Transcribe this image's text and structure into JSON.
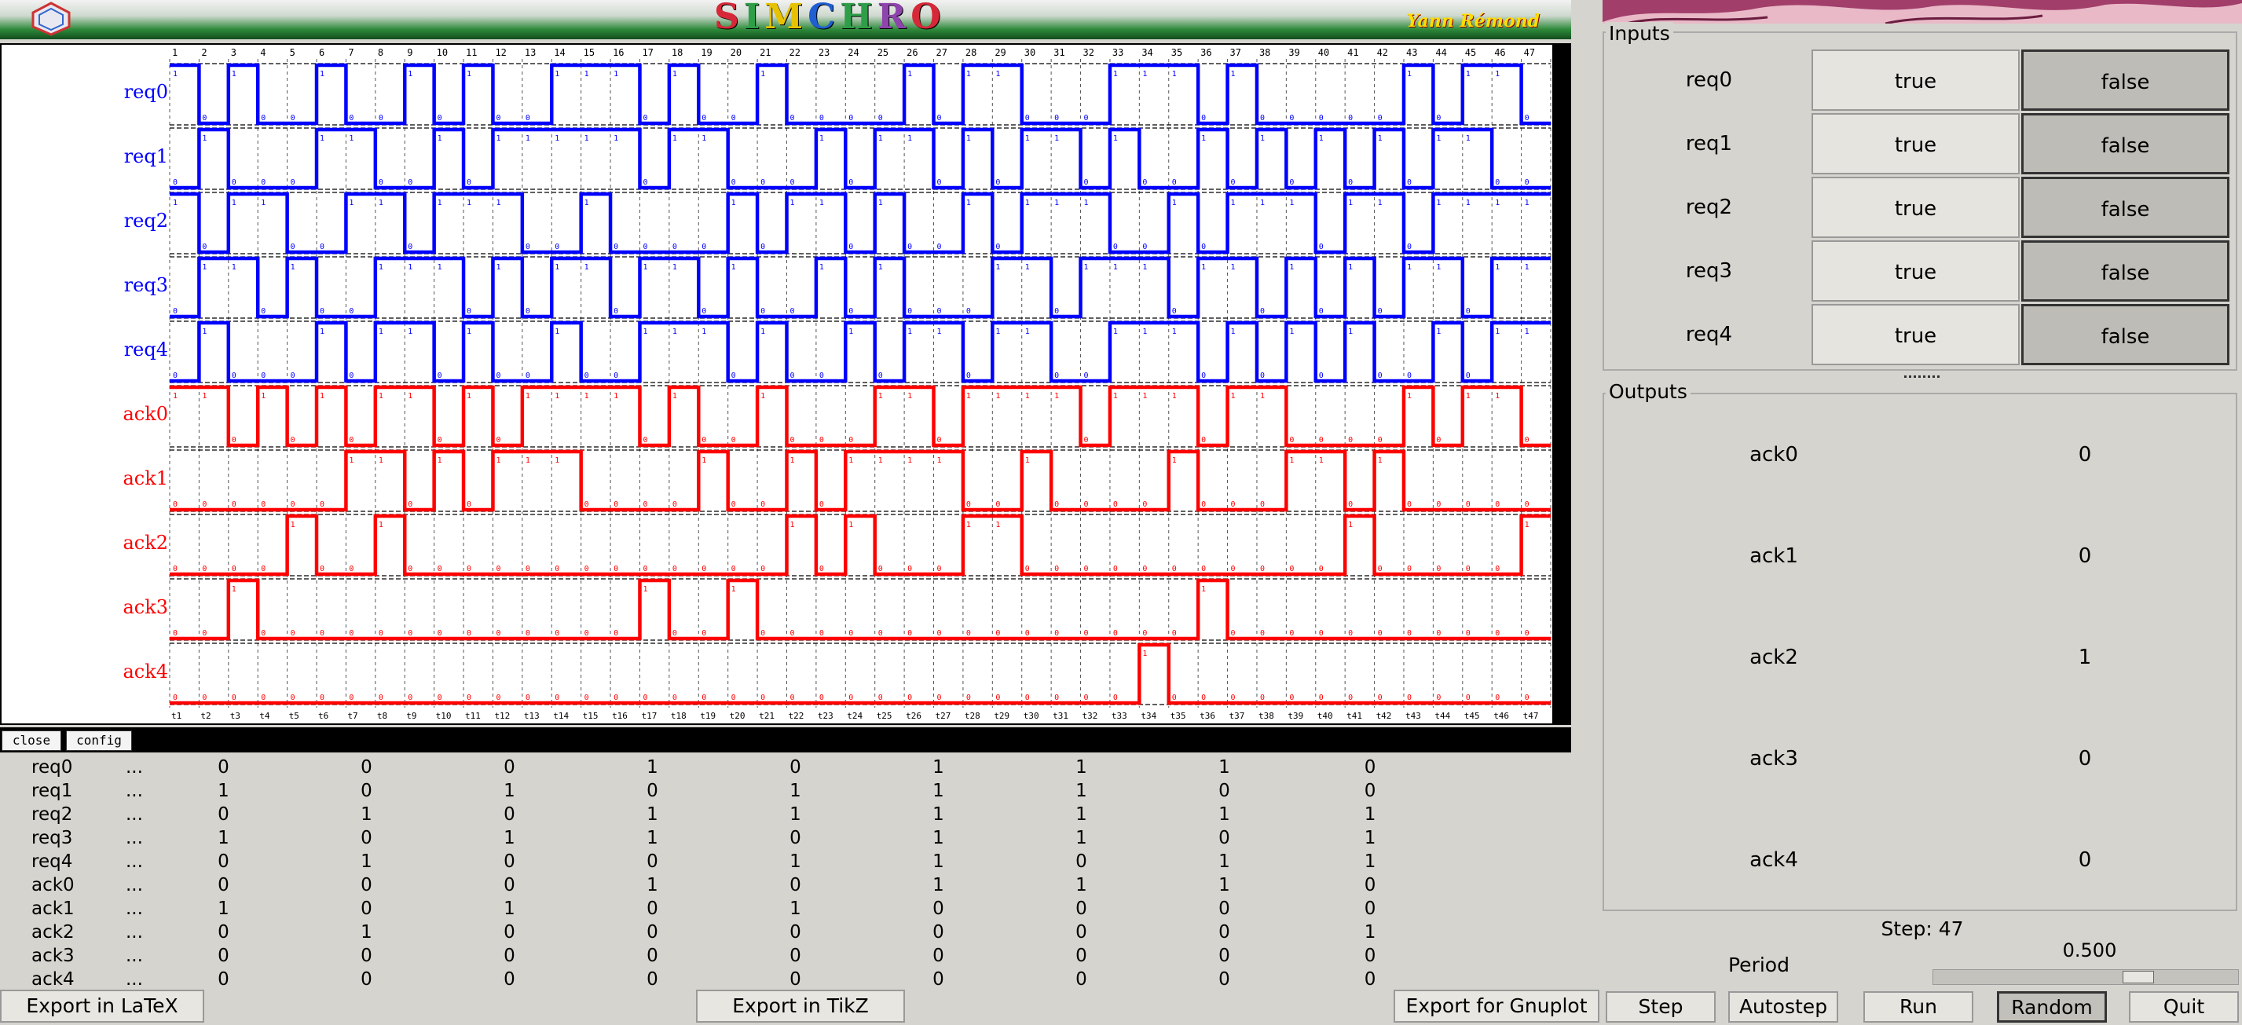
{
  "banner": {
    "title_letters": [
      {
        "ch": "S",
        "color": "#d62839"
      },
      {
        "ch": "I",
        "color": "#2e9e48"
      },
      {
        "ch": "M",
        "color": "#e6c200"
      },
      {
        "ch": "C",
        "color": "#1f5fd1"
      },
      {
        "ch": "H",
        "color": "#2e9e48"
      },
      {
        "ch": "R",
        "color": "#8e44ad"
      },
      {
        "ch": "O",
        "color": "#d62839"
      }
    ],
    "author": "Yann Rémond"
  },
  "waveform": {
    "steps": 47,
    "signals": [
      {
        "name": "req0",
        "color": "#0000ff",
        "values": [
          1,
          0,
          1,
          0,
          0,
          1,
          0,
          0,
          1,
          0,
          1,
          0,
          0,
          1,
          1,
          1,
          0,
          1,
          0,
          0,
          1,
          0,
          0,
          0,
          0,
          1,
          0,
          1,
          1,
          0,
          0,
          0,
          1,
          1,
          1,
          0,
          1,
          0,
          0,
          0,
          0,
          0,
          1,
          0,
          1,
          1,
          0
        ]
      },
      {
        "name": "req1",
        "color": "#0000ff",
        "values": [
          0,
          1,
          0,
          0,
          0,
          1,
          1,
          0,
          0,
          1,
          0,
          1,
          1,
          1,
          1,
          1,
          0,
          1,
          1,
          0,
          0,
          0,
          1,
          0,
          1,
          1,
          0,
          1,
          0,
          1,
          1,
          0,
          1,
          0,
          0,
          1,
          0,
          1,
          0,
          1,
          0,
          1,
          0,
          1,
          1,
          0,
          0
        ]
      },
      {
        "name": "req2",
        "color": "#0000ff",
        "values": [
          1,
          0,
          1,
          1,
          0,
          0,
          1,
          1,
          0,
          1,
          1,
          1,
          0,
          0,
          1,
          0,
          0,
          0,
          0,
          1,
          0,
          1,
          1,
          0,
          1,
          0,
          0,
          1,
          0,
          1,
          1,
          1,
          0,
          0,
          1,
          0,
          1,
          1,
          1,
          0,
          1,
          1,
          0,
          1,
          1,
          1,
          1
        ]
      },
      {
        "name": "req3",
        "color": "#0000ff",
        "values": [
          0,
          1,
          1,
          0,
          1,
          0,
          0,
          1,
          1,
          1,
          0,
          1,
          0,
          1,
          1,
          0,
          1,
          1,
          0,
          1,
          0,
          0,
          1,
          0,
          1,
          0,
          0,
          0,
          1,
          1,
          0,
          1,
          1,
          1,
          0,
          1,
          1,
          0,
          1,
          0,
          1,
          0,
          1,
          1,
          0,
          1,
          1
        ]
      },
      {
        "name": "req4",
        "color": "#0000ff",
        "values": [
          0,
          1,
          0,
          0,
          0,
          1,
          0,
          1,
          1,
          0,
          1,
          0,
          0,
          1,
          0,
          0,
          1,
          1,
          1,
          0,
          1,
          0,
          0,
          1,
          0,
          1,
          1,
          0,
          1,
          1,
          0,
          0,
          1,
          1,
          1,
          0,
          1,
          0,
          1,
          0,
          1,
          0,
          0,
          1,
          0,
          1,
          1
        ]
      },
      {
        "name": "ack0",
        "color": "#ff0000",
        "values": [
          1,
          1,
          0,
          1,
          0,
          1,
          0,
          1,
          1,
          0,
          1,
          0,
          1,
          1,
          1,
          1,
          0,
          1,
          0,
          0,
          1,
          0,
          0,
          0,
          1,
          1,
          0,
          1,
          1,
          1,
          1,
          0,
          1,
          1,
          1,
          0,
          1,
          1,
          0,
          0,
          0,
          0,
          1,
          0,
          1,
          1,
          0
        ]
      },
      {
        "name": "ack1",
        "color": "#ff0000",
        "values": [
          0,
          0,
          0,
          0,
          0,
          0,
          1,
          1,
          0,
          1,
          0,
          1,
          1,
          1,
          0,
          0,
          0,
          0,
          1,
          0,
          0,
          1,
          0,
          1,
          1,
          1,
          1,
          0,
          0,
          1,
          0,
          0,
          0,
          0,
          1,
          0,
          0,
          0,
          1,
          1,
          0,
          1,
          0,
          0,
          0,
          0,
          0
        ]
      },
      {
        "name": "ack2",
        "color": "#ff0000",
        "values": [
          0,
          0,
          0,
          0,
          1,
          0,
          0,
          1,
          0,
          0,
          0,
          0,
          0,
          0,
          0,
          0,
          0,
          0,
          0,
          0,
          0,
          1,
          0,
          1,
          0,
          0,
          0,
          1,
          1,
          0,
          0,
          0,
          0,
          0,
          0,
          0,
          0,
          0,
          0,
          0,
          1,
          0,
          0,
          0,
          0,
          0,
          1
        ]
      },
      {
        "name": "ack3",
        "color": "#ff0000",
        "values": [
          0,
          0,
          1,
          0,
          0,
          0,
          0,
          0,
          0,
          0,
          0,
          0,
          0,
          0,
          0,
          0,
          1,
          0,
          0,
          1,
          0,
          0,
          0,
          0,
          0,
          0,
          0,
          0,
          0,
          0,
          0,
          0,
          0,
          0,
          0,
          1,
          0,
          0,
          0,
          0,
          0,
          0,
          0,
          0,
          0,
          0,
          0
        ]
      },
      {
        "name": "ack4",
        "color": "#ff0000",
        "values": [
          0,
          0,
          0,
          0,
          0,
          0,
          0,
          0,
          0,
          0,
          0,
          0,
          0,
          0,
          0,
          0,
          0,
          0,
          0,
          0,
          0,
          0,
          0,
          0,
          0,
          0,
          0,
          0,
          0,
          0,
          0,
          0,
          0,
          1,
          0,
          0,
          0,
          0,
          0,
          0,
          0,
          0,
          0,
          0,
          0,
          0,
          0
        ]
      }
    ]
  },
  "buttons": {
    "close": "close",
    "config": "config",
    "export_latex": "Export in LaTeX",
    "export_tikz": "Export in TikZ",
    "export_gnuplot": "Export for Gnuplot"
  },
  "table": {
    "ellipsis": "...",
    "rows": [
      {
        "name": "req0",
        "values": [
          "0",
          "0",
          "0",
          "1",
          "0",
          "1",
          "1",
          "1",
          "0"
        ]
      },
      {
        "name": "req1",
        "values": [
          "1",
          "0",
          "1",
          "0",
          "1",
          "1",
          "1",
          "0",
          "0"
        ]
      },
      {
        "name": "req2",
        "values": [
          "0",
          "1",
          "0",
          "1",
          "1",
          "1",
          "1",
          "1",
          "1"
        ]
      },
      {
        "name": "req3",
        "values": [
          "1",
          "0",
          "1",
          "1",
          "0",
          "1",
          "1",
          "0",
          "1"
        ]
      },
      {
        "name": "req4",
        "values": [
          "0",
          "1",
          "0",
          "0",
          "1",
          "1",
          "0",
          "1",
          "1"
        ]
      },
      {
        "name": "ack0",
        "values": [
          "0",
          "0",
          "0",
          "1",
          "0",
          "1",
          "1",
          "1",
          "0"
        ]
      },
      {
        "name": "ack1",
        "values": [
          "1",
          "0",
          "1",
          "0",
          "1",
          "0",
          "0",
          "0",
          "0"
        ]
      },
      {
        "name": "ack2",
        "values": [
          "0",
          "1",
          "0",
          "0",
          "0",
          "0",
          "0",
          "0",
          "1"
        ]
      },
      {
        "name": "ack3",
        "values": [
          "0",
          "0",
          "0",
          "0",
          "0",
          "0",
          "0",
          "0",
          "0"
        ]
      },
      {
        "name": "ack4",
        "values": [
          "0",
          "0",
          "0",
          "0",
          "0",
          "0",
          "0",
          "0",
          "0"
        ]
      }
    ]
  },
  "inputs": {
    "label": "Inputs",
    "true_label": "true",
    "false_label": "false",
    "items": [
      "req0",
      "req1",
      "req2",
      "req3",
      "req4"
    ]
  },
  "outputs": {
    "label": "Outputs",
    "items": [
      {
        "name": "ack0",
        "value": "0"
      },
      {
        "name": "ack1",
        "value": "0"
      },
      {
        "name": "ack2",
        "value": "1"
      },
      {
        "name": "ack3",
        "value": "0"
      },
      {
        "name": "ack4",
        "value": "0"
      }
    ]
  },
  "controls": {
    "step_label": "Step: 47",
    "period_label": "Period",
    "period_value": "0.500",
    "period_slider_fraction": 0.5,
    "step": "Step",
    "autostep": "Autostep",
    "run": "Run",
    "random": "Random",
    "quit": "Quit"
  }
}
